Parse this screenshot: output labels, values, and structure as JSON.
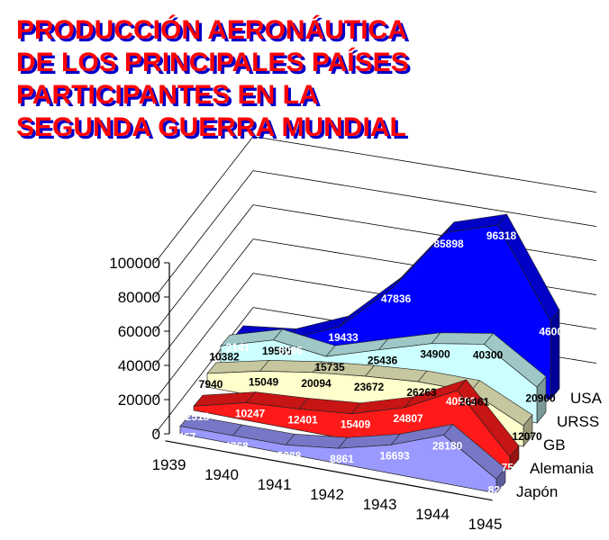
{
  "chart_data": {
    "type": "area",
    "title_lines": [
      "PRODUCCIÓN AERONÁUTICA",
      "DE LOS PRINCIPALES PAÍSES",
      "PARTICIPANTES EN LA",
      "SEGUNDA GUERRA MUNDIAL"
    ],
    "categories": [
      "1939",
      "1940",
      "1941",
      "1942",
      "1943",
      "1944",
      "1945"
    ],
    "y_ticks": [
      "0",
      "20000",
      "40000",
      "60000",
      "80000",
      "100000"
    ],
    "ylim": [
      0,
      100000
    ],
    "grid": true,
    "series": [
      {
        "name": "Japón",
        "color": "#9999ff",
        "label_color": "#ffffff",
        "values": [
          4467,
          4768,
          5088,
          8861,
          16693,
          28180,
          8263
        ]
      },
      {
        "name": "Alemania",
        "color": "#ff1a1a",
        "label_color": "#ffffff",
        "values": [
          2518,
          10247,
          12401,
          15409,
          24807,
          40593,
          7539
        ]
      },
      {
        "name": "GB",
        "color": "#ffffcc",
        "label_color": "#000000",
        "values": [
          7940,
          15049,
          20094,
          23672,
          26263,
          26461,
          12070
        ]
      },
      {
        "name": "URSS",
        "color": "#ccffff",
        "label_color": "#000000",
        "values": [
          10382,
          19565,
          15735,
          25436,
          34900,
          40300,
          20900
        ]
      },
      {
        "name": "USA",
        "color": "#0000ff",
        "label_color": "#ffffff",
        "values": [
          2141,
          6086,
          19433,
          47836,
          85898,
          96318,
          46001
        ]
      }
    ]
  },
  "colors": {
    "title_fill": "#ff0000",
    "title_shadow": "#0000cc"
  }
}
